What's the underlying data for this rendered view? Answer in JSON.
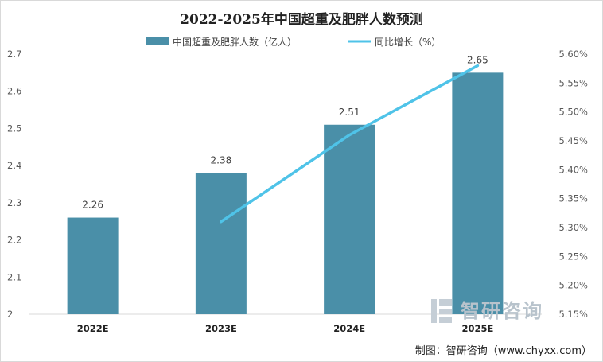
{
  "chart_data": {
    "type": "bar+line",
    "title": "2022-2025年中国超重及肥胖人数预测",
    "categories": [
      "2022E",
      "2023E",
      "2024E",
      "2025E"
    ],
    "series": [
      {
        "name": "中国超重及肥胖人数（亿人）",
        "type": "bar",
        "axis": "left",
        "color": "#4a8fa8",
        "values": [
          2.26,
          2.38,
          2.51,
          2.65
        ],
        "labels": [
          "2.26",
          "2.38",
          "2.51",
          "2.65"
        ]
      },
      {
        "name": "同比增长（%）",
        "type": "line",
        "axis": "right",
        "color": "#4fc3e8",
        "values": [
          null,
          5.31,
          5.46,
          5.58
        ]
      }
    ],
    "left_axis": {
      "min": 2.0,
      "max": 2.7,
      "step": 0.1,
      "ticks": [
        "2",
        "2.1",
        "2.2",
        "2.3",
        "2.4",
        "2.5",
        "2.6",
        "2.7"
      ]
    },
    "right_axis": {
      "min": 5.15,
      "max": 5.6,
      "step": 0.05,
      "ticks": [
        "5.15%",
        "5.20%",
        "5.25%",
        "5.30%",
        "5.35%",
        "5.40%",
        "5.45%",
        "5.50%",
        "5.55%",
        "5.60%"
      ]
    },
    "grid": false,
    "legend": "top-center"
  },
  "watermark": "智研咨询",
  "watermark_sub": "www.chyxx.com",
  "credit": "制图：智研咨询（www.chyxx.com）"
}
